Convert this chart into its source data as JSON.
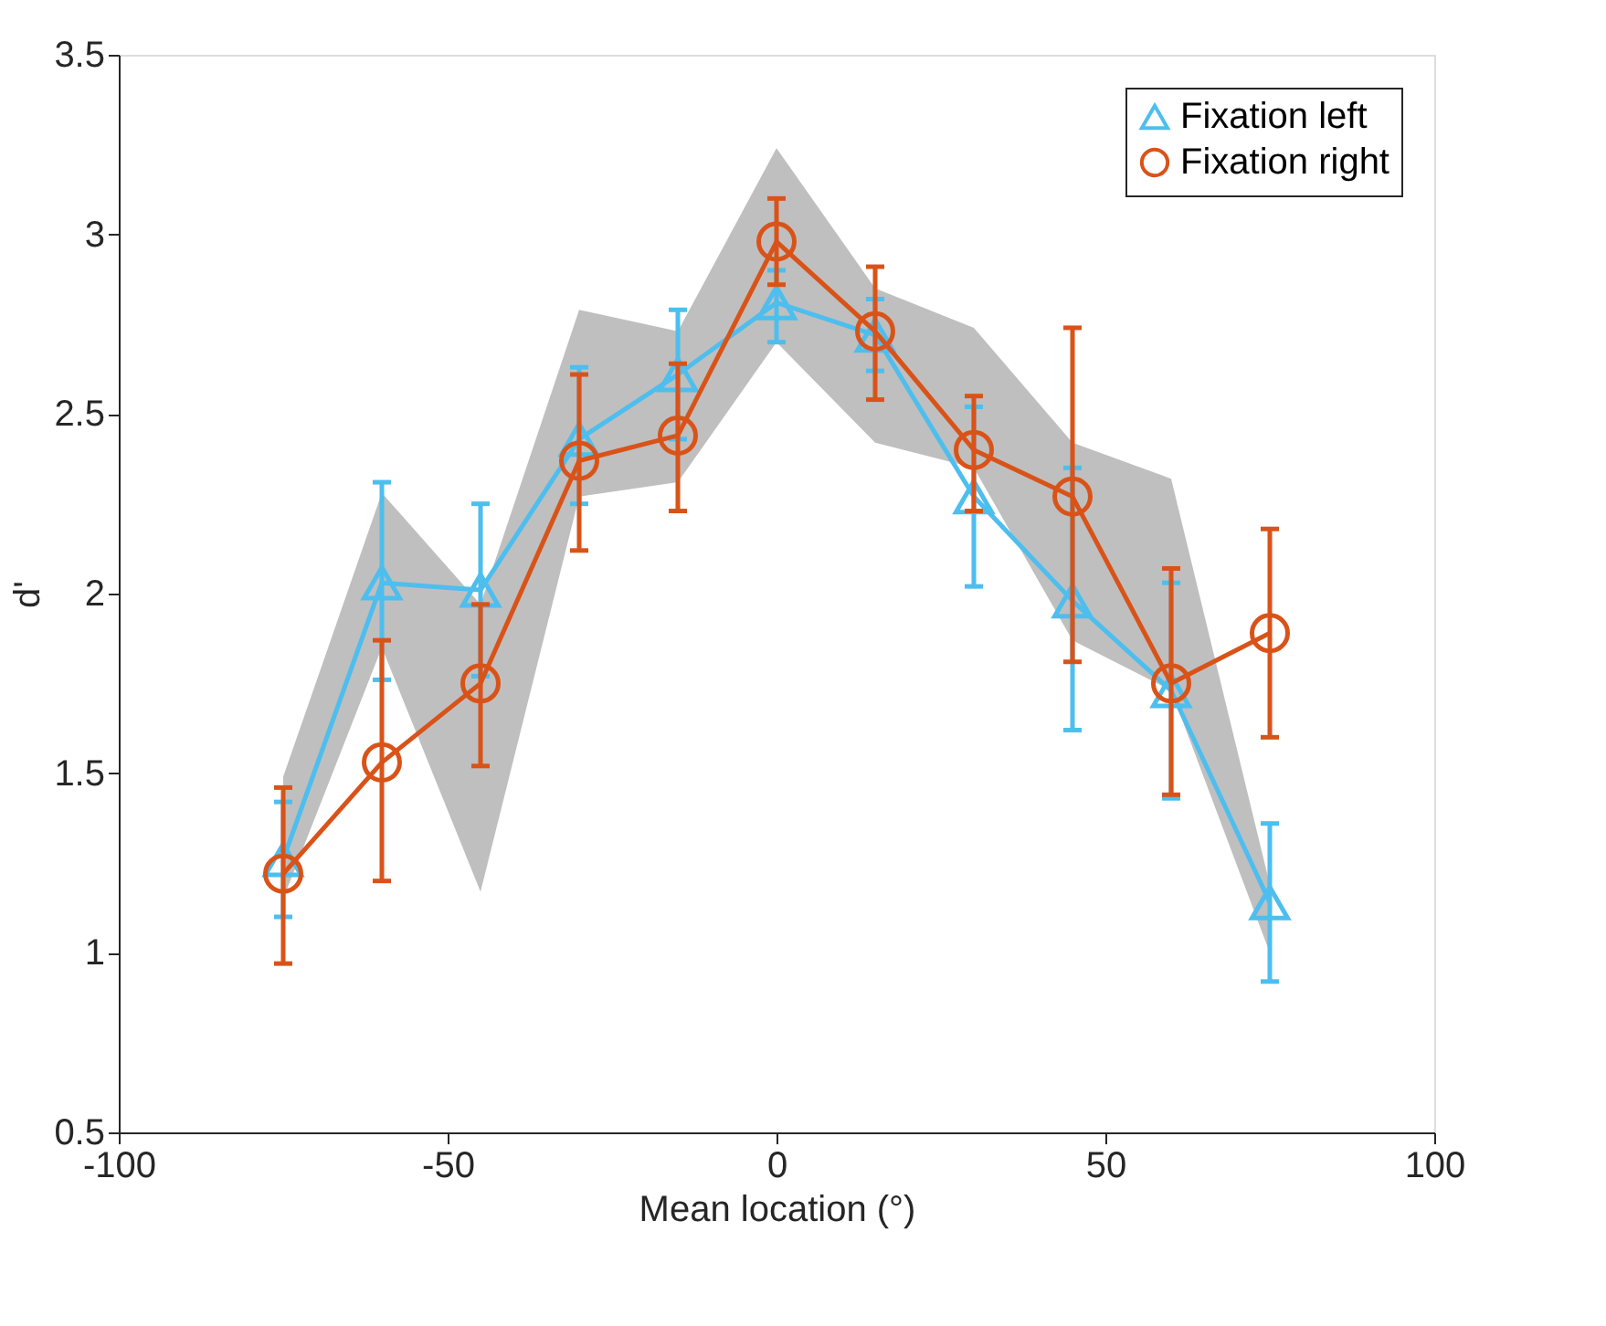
{
  "chart_data": {
    "type": "line",
    "xlabel": "Mean location (°)",
    "ylabel": "d'",
    "x": [
      -75,
      -60,
      -45,
      -30,
      -15,
      0,
      15,
      30,
      45,
      60,
      75
    ],
    "series": [
      {
        "type": "area",
        "color": "#bfbfbf",
        "values": [
          null,
          null,
          null,
          null,
          null,
          null,
          null,
          null,
          null,
          null,
          null
        ],
        "lower": [
          1.15,
          1.85,
          1.17,
          2.27,
          2.31,
          2.7,
          2.42,
          2.35,
          1.87,
          1.73,
          1.0
        ],
        "upper": [
          1.49,
          2.28,
          1.97,
          2.79,
          2.73,
          3.24,
          2.85,
          2.74,
          2.42,
          2.32,
          1.19
        ]
      },
      {
        "name": "Fixation left",
        "color": "#4dbeee",
        "marker": "triangle",
        "values": [
          1.26,
          2.03,
          2.01,
          2.43,
          2.61,
          2.81,
          2.72,
          2.27,
          1.98,
          1.73,
          1.14
        ],
        "errors": [
          [
            1.1,
            1.42
          ],
          [
            1.76,
            2.31
          ],
          [
            1.77,
            2.25
          ],
          [
            2.25,
            2.63
          ],
          [
            2.43,
            2.79
          ],
          [
            2.7,
            2.9
          ],
          [
            2.62,
            2.82
          ],
          [
            2.02,
            2.52
          ],
          [
            1.62,
            2.35
          ],
          [
            1.43,
            2.03
          ],
          [
            0.92,
            1.36
          ]
        ]
      },
      {
        "name": "Fixation right",
        "color": "#d95319",
        "marker": "circle",
        "values": [
          1.22,
          1.53,
          1.75,
          2.37,
          2.44,
          2.98,
          2.73,
          2.4,
          2.27,
          1.75,
          1.89
        ],
        "errors": [
          [
            0.97,
            1.46
          ],
          [
            1.2,
            1.87
          ],
          [
            1.52,
            1.97
          ],
          [
            2.12,
            2.61
          ],
          [
            2.23,
            2.64
          ],
          [
            2.86,
            3.1
          ],
          [
            2.54,
            2.91
          ],
          [
            2.23,
            2.55
          ],
          [
            1.81,
            2.74
          ],
          [
            1.44,
            2.07
          ],
          [
            1.6,
            2.18
          ]
        ]
      }
    ],
    "xlim": [
      -100,
      100
    ],
    "xticks": [
      -100,
      -50,
      0,
      50,
      100
    ],
    "ylim": [
      0.5,
      3.5
    ],
    "yticks": [
      0.5,
      1,
      1.5,
      2,
      2.5,
      3,
      3.5
    ],
    "grid": false,
    "legend": "top right",
    "line_style": "solid"
  }
}
